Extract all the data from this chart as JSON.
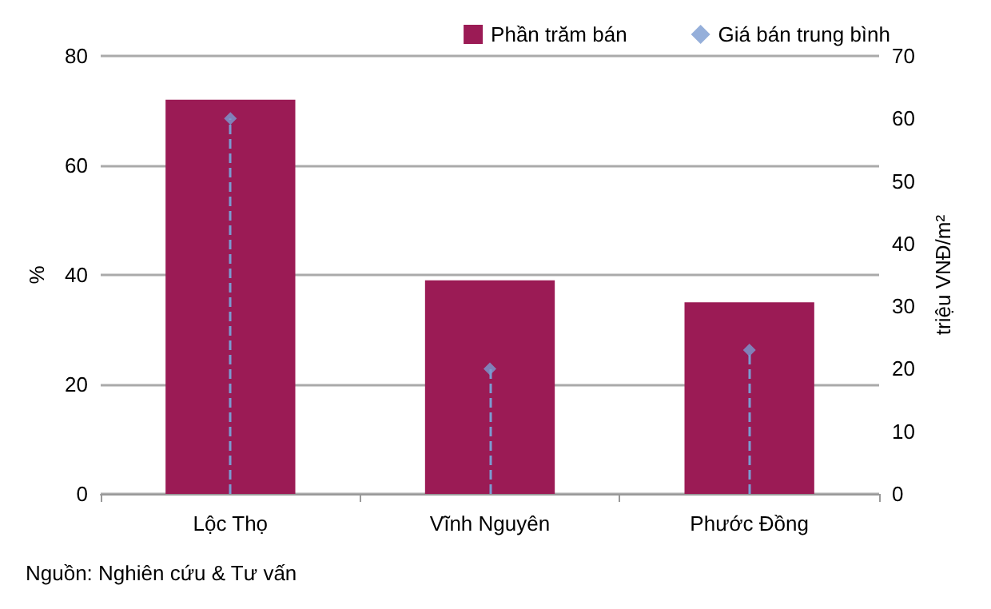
{
  "chart_data": {
    "type": "bar",
    "categories": [
      "Lộc Thọ",
      "Vĩnh Nguyên",
      "Phước Đồng"
    ],
    "series": [
      {
        "name": "Phần trăm bán",
        "color": "#9b1b55",
        "values": [
          72,
          39,
          35
        ]
      },
      {
        "name": "Giá bán trung bình",
        "type": "lollipop",
        "axis": "y2",
        "color": "#7b9bd1",
        "marker": "diamond",
        "line_style": "dashed",
        "values": [
          60,
          20,
          23
        ]
      }
    ],
    "ylabel": "%",
    "y2label": "triệu VNĐ/m²",
    "ylim": [
      0,
      80
    ],
    "yticks": [
      0,
      20,
      40,
      60,
      80
    ],
    "y2lim": [
      0,
      70
    ],
    "y2ticks": [
      0,
      10,
      20,
      30,
      40,
      50,
      60,
      70
    ],
    "grid": "y",
    "legend": "top right",
    "annotations": [
      "Nguồn: Nghiên cứu & Tư vấn"
    ]
  }
}
